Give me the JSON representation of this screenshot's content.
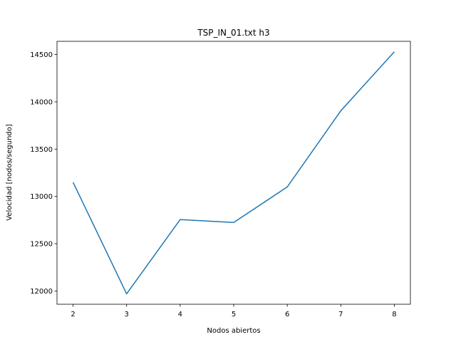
{
  "chart_data": {
    "type": "line",
    "title": "TSP_IN_01.txt h3",
    "xlabel": "Nodos abiertos",
    "ylabel": "Velocidad [nodos/segundo]",
    "x": [
      2,
      3,
      4,
      5,
      6,
      7,
      8
    ],
    "series": [
      {
        "values": [
          13150,
          11970,
          12755,
          12725,
          13100,
          13905,
          14530
        ],
        "color": "#1f77b4"
      }
    ],
    "xlim": [
      1.7,
      8.3
    ],
    "ylim": [
      11860,
      14640
    ],
    "xticks": [
      2,
      3,
      4,
      5,
      6,
      7,
      8
    ],
    "yticks": [
      12000,
      12500,
      13000,
      13500,
      14000,
      14500
    ],
    "grid": false,
    "legend": "none"
  }
}
